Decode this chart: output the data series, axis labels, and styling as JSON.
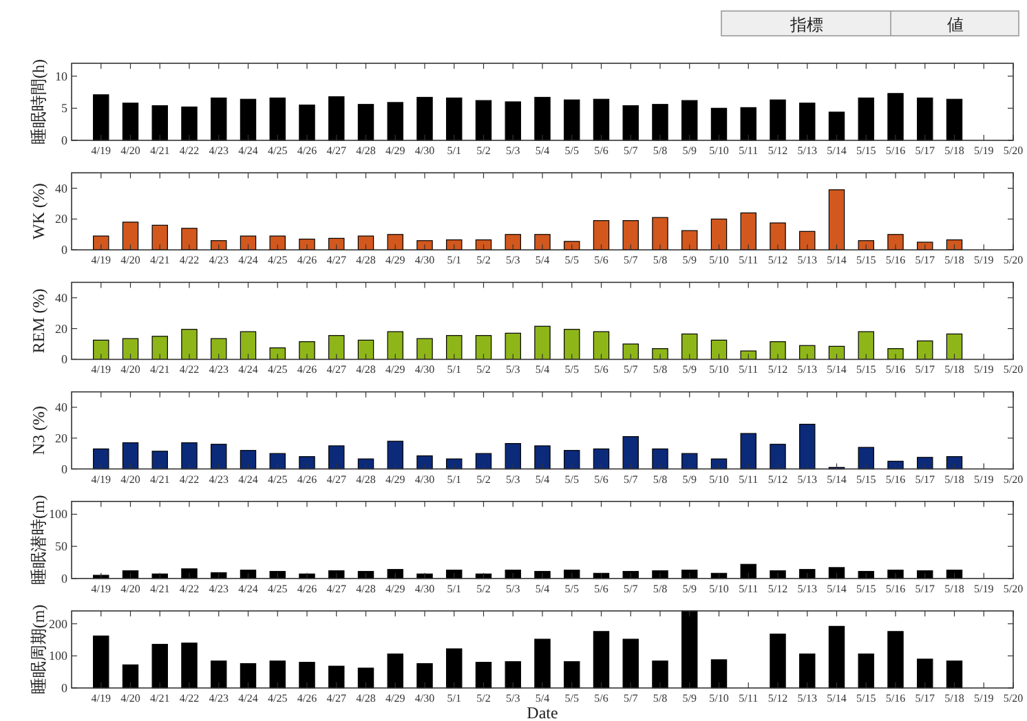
{
  "chart_data": [
    {
      "type": "bar",
      "ylabel": "睡眠時間(h)",
      "color": "#000000",
      "ylim": [
        0,
        12
      ],
      "yticks": [
        0,
        5,
        10
      ],
      "annotations": [
        "指標",
        "値"
      ],
      "categories": [
        "4/19",
        "4/20",
        "4/21",
        "4/22",
        "4/23",
        "4/24",
        "4/25",
        "4/26",
        "4/27",
        "4/28",
        "4/29",
        "4/30",
        "5/1",
        "5/2",
        "5/3",
        "5/4",
        "5/5",
        "5/6",
        "5/7",
        "5/8",
        "5/9",
        "5/10",
        "5/11",
        "5/12",
        "5/13",
        "5/14",
        "5/15",
        "5/16",
        "5/17",
        "5/18",
        "5/19",
        "5/20"
      ],
      "values": [
        7.1,
        5.8,
        5.4,
        5.2,
        6.6,
        6.4,
        6.6,
        5.5,
        6.8,
        5.6,
        5.9,
        6.7,
        6.6,
        6.2,
        6.0,
        6.7,
        6.3,
        6.4,
        5.4,
        5.6,
        6.2,
        5.0,
        5.1,
        6.3,
        5.8,
        4.4,
        6.6,
        7.3,
        6.6,
        6.4,
        null,
        null
      ]
    },
    {
      "type": "bar",
      "ylabel": "WK (%)",
      "color": "#d2581e",
      "ylim": [
        0,
        50
      ],
      "yticks": [
        0,
        20,
        40
      ],
      "categories": [
        "4/19",
        "4/20",
        "4/21",
        "4/22",
        "4/23",
        "4/24",
        "4/25",
        "4/26",
        "4/27",
        "4/28",
        "4/29",
        "4/30",
        "5/1",
        "5/2",
        "5/3",
        "5/4",
        "5/5",
        "5/6",
        "5/7",
        "5/8",
        "5/9",
        "5/10",
        "5/11",
        "5/12",
        "5/13",
        "5/14",
        "5/15",
        "5/16",
        "5/17",
        "5/18",
        "5/19",
        "5/20"
      ],
      "values": [
        9,
        18,
        16,
        14,
        6,
        9,
        9,
        7,
        7.5,
        9,
        10,
        6,
        6.5,
        6.5,
        10,
        10,
        5.5,
        19,
        19,
        21,
        12.5,
        20,
        24,
        17.5,
        12,
        39,
        6,
        10,
        5,
        6.5,
        null,
        null
      ]
    },
    {
      "type": "bar",
      "ylabel": "REM (%)",
      "color": "#8fb619",
      "ylim": [
        0,
        50
      ],
      "yticks": [
        0,
        20,
        40
      ],
      "categories": [
        "4/19",
        "4/20",
        "4/21",
        "4/22",
        "4/23",
        "4/24",
        "4/25",
        "4/26",
        "4/27",
        "4/28",
        "4/29",
        "4/30",
        "5/1",
        "5/2",
        "5/3",
        "5/4",
        "5/5",
        "5/6",
        "5/7",
        "5/8",
        "5/9",
        "5/10",
        "5/11",
        "5/12",
        "5/13",
        "5/14",
        "5/15",
        "5/16",
        "5/17",
        "5/18",
        "5/19",
        "5/20"
      ],
      "values": [
        12.5,
        13.5,
        15,
        19.5,
        13.5,
        18,
        7.5,
        11.5,
        15.5,
        12.5,
        18,
        13.5,
        15.5,
        15.5,
        17,
        21.5,
        19.5,
        18,
        10,
        7,
        16.5,
        12.5,
        5.5,
        11.5,
        9,
        8.5,
        18,
        7,
        12,
        16.5,
        null,
        null
      ]
    },
    {
      "type": "bar",
      "ylabel": "N3 (%)",
      "color": "#0c2a7a",
      "ylim": [
        0,
        50
      ],
      "yticks": [
        0,
        20,
        40
      ],
      "categories": [
        "4/19",
        "4/20",
        "4/21",
        "4/22",
        "4/23",
        "4/24",
        "4/25",
        "4/26",
        "4/27",
        "4/28",
        "4/29",
        "4/30",
        "5/1",
        "5/2",
        "5/3",
        "5/4",
        "5/5",
        "5/6",
        "5/7",
        "5/8",
        "5/9",
        "5/10",
        "5/11",
        "5/12",
        "5/13",
        "5/14",
        "5/15",
        "5/16",
        "5/17",
        "5/18",
        "5/19",
        "5/20"
      ],
      "values": [
        13,
        17,
        11.5,
        17,
        16,
        12,
        10,
        8,
        15,
        6.5,
        18,
        8.5,
        6.5,
        10,
        16.5,
        15,
        12,
        13,
        21,
        13,
        10,
        6.5,
        23,
        16,
        29,
        1,
        14,
        5,
        7.5,
        8,
        null,
        null
      ]
    },
    {
      "type": "bar",
      "ylabel": "睡眠潜時(m)",
      "color": "#000000",
      "ylim": [
        0,
        120
      ],
      "yticks": [
        0,
        50,
        100
      ],
      "categories": [
        "4/19",
        "4/20",
        "4/21",
        "4/22",
        "4/23",
        "4/24",
        "4/25",
        "4/26",
        "4/27",
        "4/28",
        "4/29",
        "4/30",
        "5/1",
        "5/2",
        "5/3",
        "5/4",
        "5/5",
        "5/6",
        "5/7",
        "5/8",
        "5/9",
        "5/10",
        "5/11",
        "5/12",
        "5/13",
        "5/14",
        "5/15",
        "5/16",
        "5/17",
        "5/18",
        "5/19",
        "5/20"
      ],
      "values": [
        5,
        12,
        7,
        15,
        9,
        13,
        11,
        7,
        12,
        11,
        14,
        7,
        13,
        7,
        13,
        11,
        13,
        8,
        11,
        12,
        13,
        8,
        22,
        12,
        14,
        17,
        11,
        13,
        12,
        13,
        null,
        null
      ]
    },
    {
      "type": "bar",
      "ylabel": "睡眠周期(m)",
      "xlabel": "Date",
      "color": "#000000",
      "ylim": [
        0,
        240
      ],
      "yticks": [
        0,
        100,
        200
      ],
      "categories": [
        "4/19",
        "4/20",
        "4/21",
        "4/22",
        "4/23",
        "4/24",
        "4/25",
        "4/26",
        "4/27",
        "4/28",
        "4/29",
        "4/30",
        "5/1",
        "5/2",
        "5/3",
        "5/4",
        "5/5",
        "5/6",
        "5/7",
        "5/8",
        "5/9",
        "5/10",
        "5/11",
        "5/12",
        "5/13",
        "5/14",
        "5/15",
        "5/16",
        "5/17",
        "5/18",
        "5/19",
        "5/20"
      ],
      "values": [
        162,
        72,
        136,
        140,
        84,
        76,
        84,
        80,
        68,
        62,
        106,
        76,
        122,
        80,
        82,
        152,
        82,
        176,
        152,
        84,
        240,
        88,
        null,
        168,
        106,
        192,
        106,
        176,
        90,
        84,
        null,
        null
      ]
    }
  ]
}
